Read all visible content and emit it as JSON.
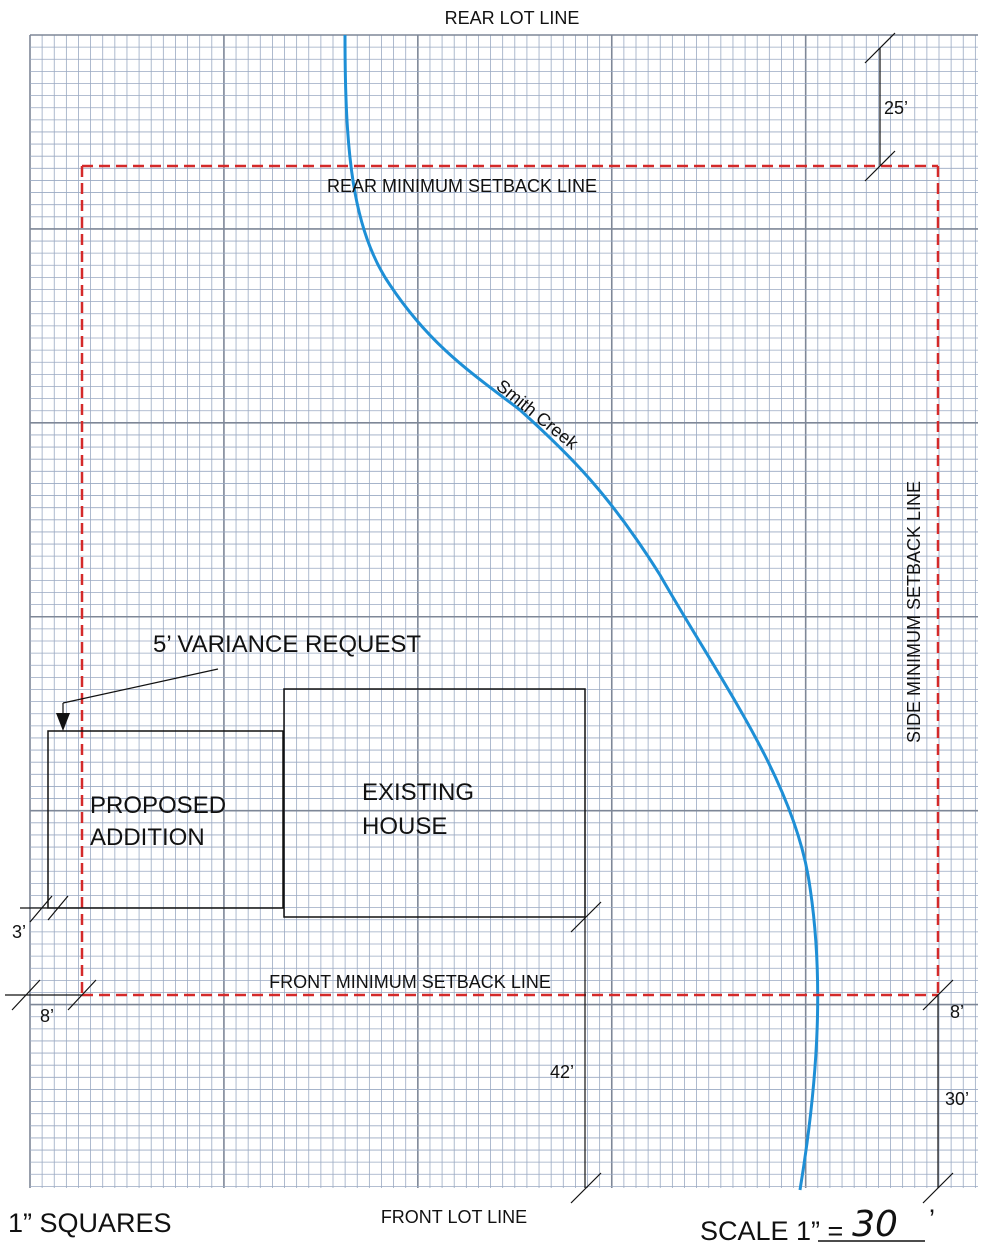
{
  "lot_lines": {
    "rear": "REAR LOT LINE",
    "front": "FRONT LOT LINE"
  },
  "setbacks": {
    "rear": "REAR MINIMUM SETBACK LINE",
    "front": "FRONT MINIMUM SETBACK LINE",
    "side": "SIDE MINIMUM SETBACK LINE"
  },
  "creek": {
    "name": "Smith Creek"
  },
  "structures": {
    "addition_line1": "PROPOSED",
    "addition_line2": "ADDITION",
    "house_line1": "EXISTING",
    "house_line2": "HOUSE"
  },
  "variance": "5’ VARIANCE REQUEST",
  "dimensions": {
    "rear_setback": "25’",
    "addition_gap": "3’",
    "front_left": "8’",
    "front_right": "8’",
    "house_to_front": "42’",
    "right_front": "30’"
  },
  "footer": {
    "squares": "1” SQUARES",
    "scale_prefix": "SCALE 1” =",
    "scale_value": "30",
    "scale_unit": "’"
  },
  "colors": {
    "grid_minor": "#9aa9c2",
    "grid_major": "#7e8797",
    "setback": "#d42a2a",
    "creek": "#1e8fd6"
  }
}
